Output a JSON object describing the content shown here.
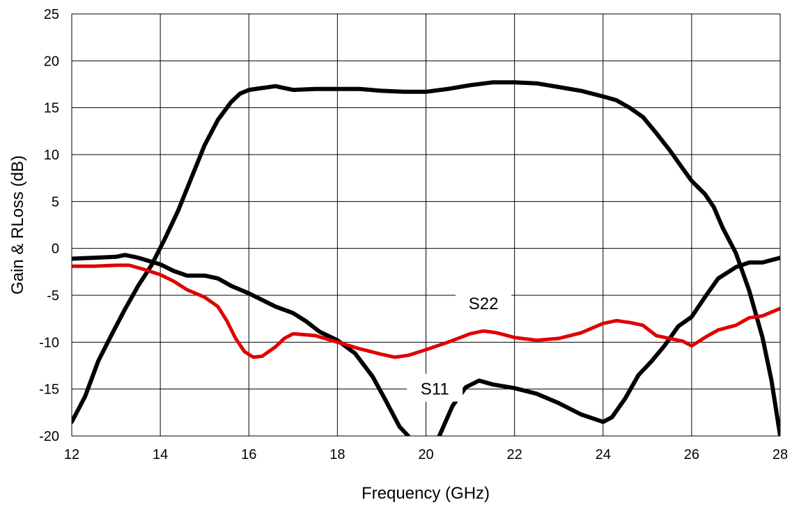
{
  "chart_data": {
    "type": "line",
    "xlabel": "Frequency (GHz)",
    "ylabel": "Gain & RLoss (dB)",
    "xlim": [
      12,
      28
    ],
    "ylim": [
      -20,
      25
    ],
    "x_ticks": [
      "12",
      "14",
      "16",
      "18",
      "20",
      "22",
      "24",
      "26",
      "28"
    ],
    "y_ticks": [
      "-20",
      "-15",
      "-10",
      "-5",
      "0",
      "5",
      "10",
      "15",
      "20",
      "25"
    ],
    "grid": true,
    "annotations": [
      {
        "text": "S22",
        "x": 21.3,
        "y": -5.9
      },
      {
        "text": "S11",
        "x": 20.2,
        "y": -15
      }
    ],
    "series": [
      {
        "color": "#000000",
        "x": [
          12.0,
          12.3,
          12.6,
          12.9,
          13.2,
          13.5,
          13.8,
          14.1,
          14.4,
          14.7,
          15.0,
          15.3,
          15.6,
          15.8,
          16.0,
          16.3,
          16.6,
          16.8,
          17.0,
          17.5,
          18.0,
          18.5,
          19.0,
          19.5,
          20.0,
          20.5,
          21.0,
          21.5,
          22.0,
          22.5,
          23.0,
          23.5,
          24.0,
          24.3,
          24.6,
          24.9,
          25.2,
          25.5,
          25.8,
          26.0,
          26.3,
          26.5,
          26.7,
          27.0,
          27.3,
          27.6,
          27.8,
          28.0
        ],
        "y": [
          -18.5,
          -15.8,
          -12,
          -9.2,
          -6.5,
          -4,
          -1.8,
          1,
          4,
          7.5,
          11,
          13.7,
          15.6,
          16.5,
          16.9,
          17.1,
          17.3,
          17.1,
          16.9,
          17.0,
          17.0,
          17.0,
          16.8,
          16.7,
          16.7,
          17.0,
          17.4,
          17.7,
          17.7,
          17.6,
          17.2,
          16.8,
          16.2,
          15.8,
          15.0,
          14.0,
          12.3,
          10.5,
          8.5,
          7.2,
          5.8,
          4.4,
          2.2,
          -0.5,
          -4.5,
          -9.5,
          -14.0,
          -20.0
        ]
      },
      {
        "color": "#000000",
        "x": [
          12.0,
          12.5,
          13.0,
          13.2,
          13.5,
          14.0,
          14.3,
          14.6,
          15.0,
          15.3,
          15.6,
          16.0,
          16.3,
          16.6,
          17.0,
          17.3,
          17.6,
          18.0,
          18.4,
          18.8,
          19.1,
          19.4,
          19.6
        ],
        "y": [
          -1.1,
          -1.0,
          -0.9,
          -0.7,
          -1.0,
          -1.7,
          -2.4,
          -2.9,
          -2.9,
          -3.2,
          -4.0,
          -4.8,
          -5.5,
          -6.2,
          -6.9,
          -7.8,
          -8.9,
          -9.8,
          -11.2,
          -13.7,
          -16.3,
          -19.0,
          -20.0
        ]
      },
      {
        "color": "#000000",
        "x": [
          20.3,
          20.6,
          20.9,
          21.2,
          21.5,
          22.0,
          22.5,
          23.0,
          23.5,
          24.0,
          24.2,
          24.5,
          24.8,
          25.1,
          25.4,
          25.7,
          26.0,
          26.3,
          26.6,
          27.0,
          27.3,
          27.6,
          28.0
        ],
        "y": [
          -20.0,
          -16.8,
          -14.8,
          -14.1,
          -14.5,
          -14.9,
          -15.5,
          -16.5,
          -17.7,
          -18.5,
          -18.0,
          -16.0,
          -13.5,
          -12.0,
          -10.3,
          -8.3,
          -7.3,
          -5.2,
          -3.2,
          -2.0,
          -1.5,
          -1.5,
          -1.0
        ]
      },
      {
        "color": "#e00000",
        "x": [
          12.0,
          12.5,
          13.0,
          13.3,
          13.6,
          14.0,
          14.3,
          14.6,
          15.0,
          15.3,
          15.5,
          15.7,
          15.9,
          16.1,
          16.3,
          16.6,
          16.8,
          17.0,
          17.5,
          18.0,
          18.5,
          19.0,
          19.3,
          19.6,
          20.0,
          20.5,
          21.0,
          21.3,
          21.6,
          22.0,
          22.5,
          23.0,
          23.5,
          24.0,
          24.3,
          24.6,
          24.9,
          25.2,
          25.5,
          25.8,
          26.0,
          26.3,
          26.6,
          27.0,
          27.3,
          27.6,
          28.0
        ],
        "y": [
          -1.9,
          -1.9,
          -1.8,
          -1.8,
          -2.2,
          -2.8,
          -3.5,
          -4.4,
          -5.2,
          -6.2,
          -7.7,
          -9.6,
          -11.0,
          -11.6,
          -11.5,
          -10.5,
          -9.6,
          -9.1,
          -9.3,
          -10.0,
          -10.7,
          -11.3,
          -11.6,
          -11.4,
          -10.8,
          -10.0,
          -9.1,
          -8.8,
          -9.0,
          -9.5,
          -9.8,
          -9.6,
          -9.0,
          -8.0,
          -7.7,
          -7.9,
          -8.2,
          -9.3,
          -9.6,
          -9.9,
          -10.4,
          -9.5,
          -8.7,
          -8.2,
          -7.4,
          -7.2,
          -6.4
        ]
      }
    ]
  }
}
